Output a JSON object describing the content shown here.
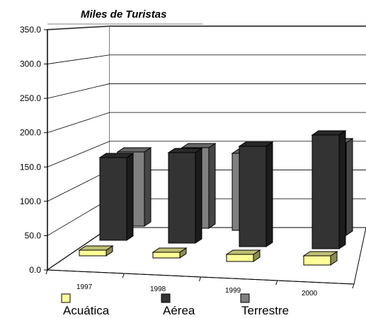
{
  "chart_data": {
    "type": "bar",
    "title": "Miles de Turistas",
    "categories": [
      "1997",
      "1998",
      "1999",
      "2000"
    ],
    "ylim": [
      0,
      350
    ],
    "yticks": [
      "0.0",
      "50.0",
      "100.0",
      "150.0",
      "200.0",
      "250.0",
      "300.0",
      "350.0"
    ],
    "grid": true,
    "legend_position": "bottom",
    "series": [
      {
        "name": "Acuática",
        "values": [
          10,
          10,
          12,
          14
        ],
        "color": "#ffff99"
      },
      {
        "name": "Aérea",
        "values": [
          112,
          125,
          138,
          158
        ],
        "color": "#333333"
      },
      {
        "name": "Terrestre",
        "values": [
          193,
          221,
          263,
          255
        ],
        "color": "#808080"
      }
    ]
  }
}
